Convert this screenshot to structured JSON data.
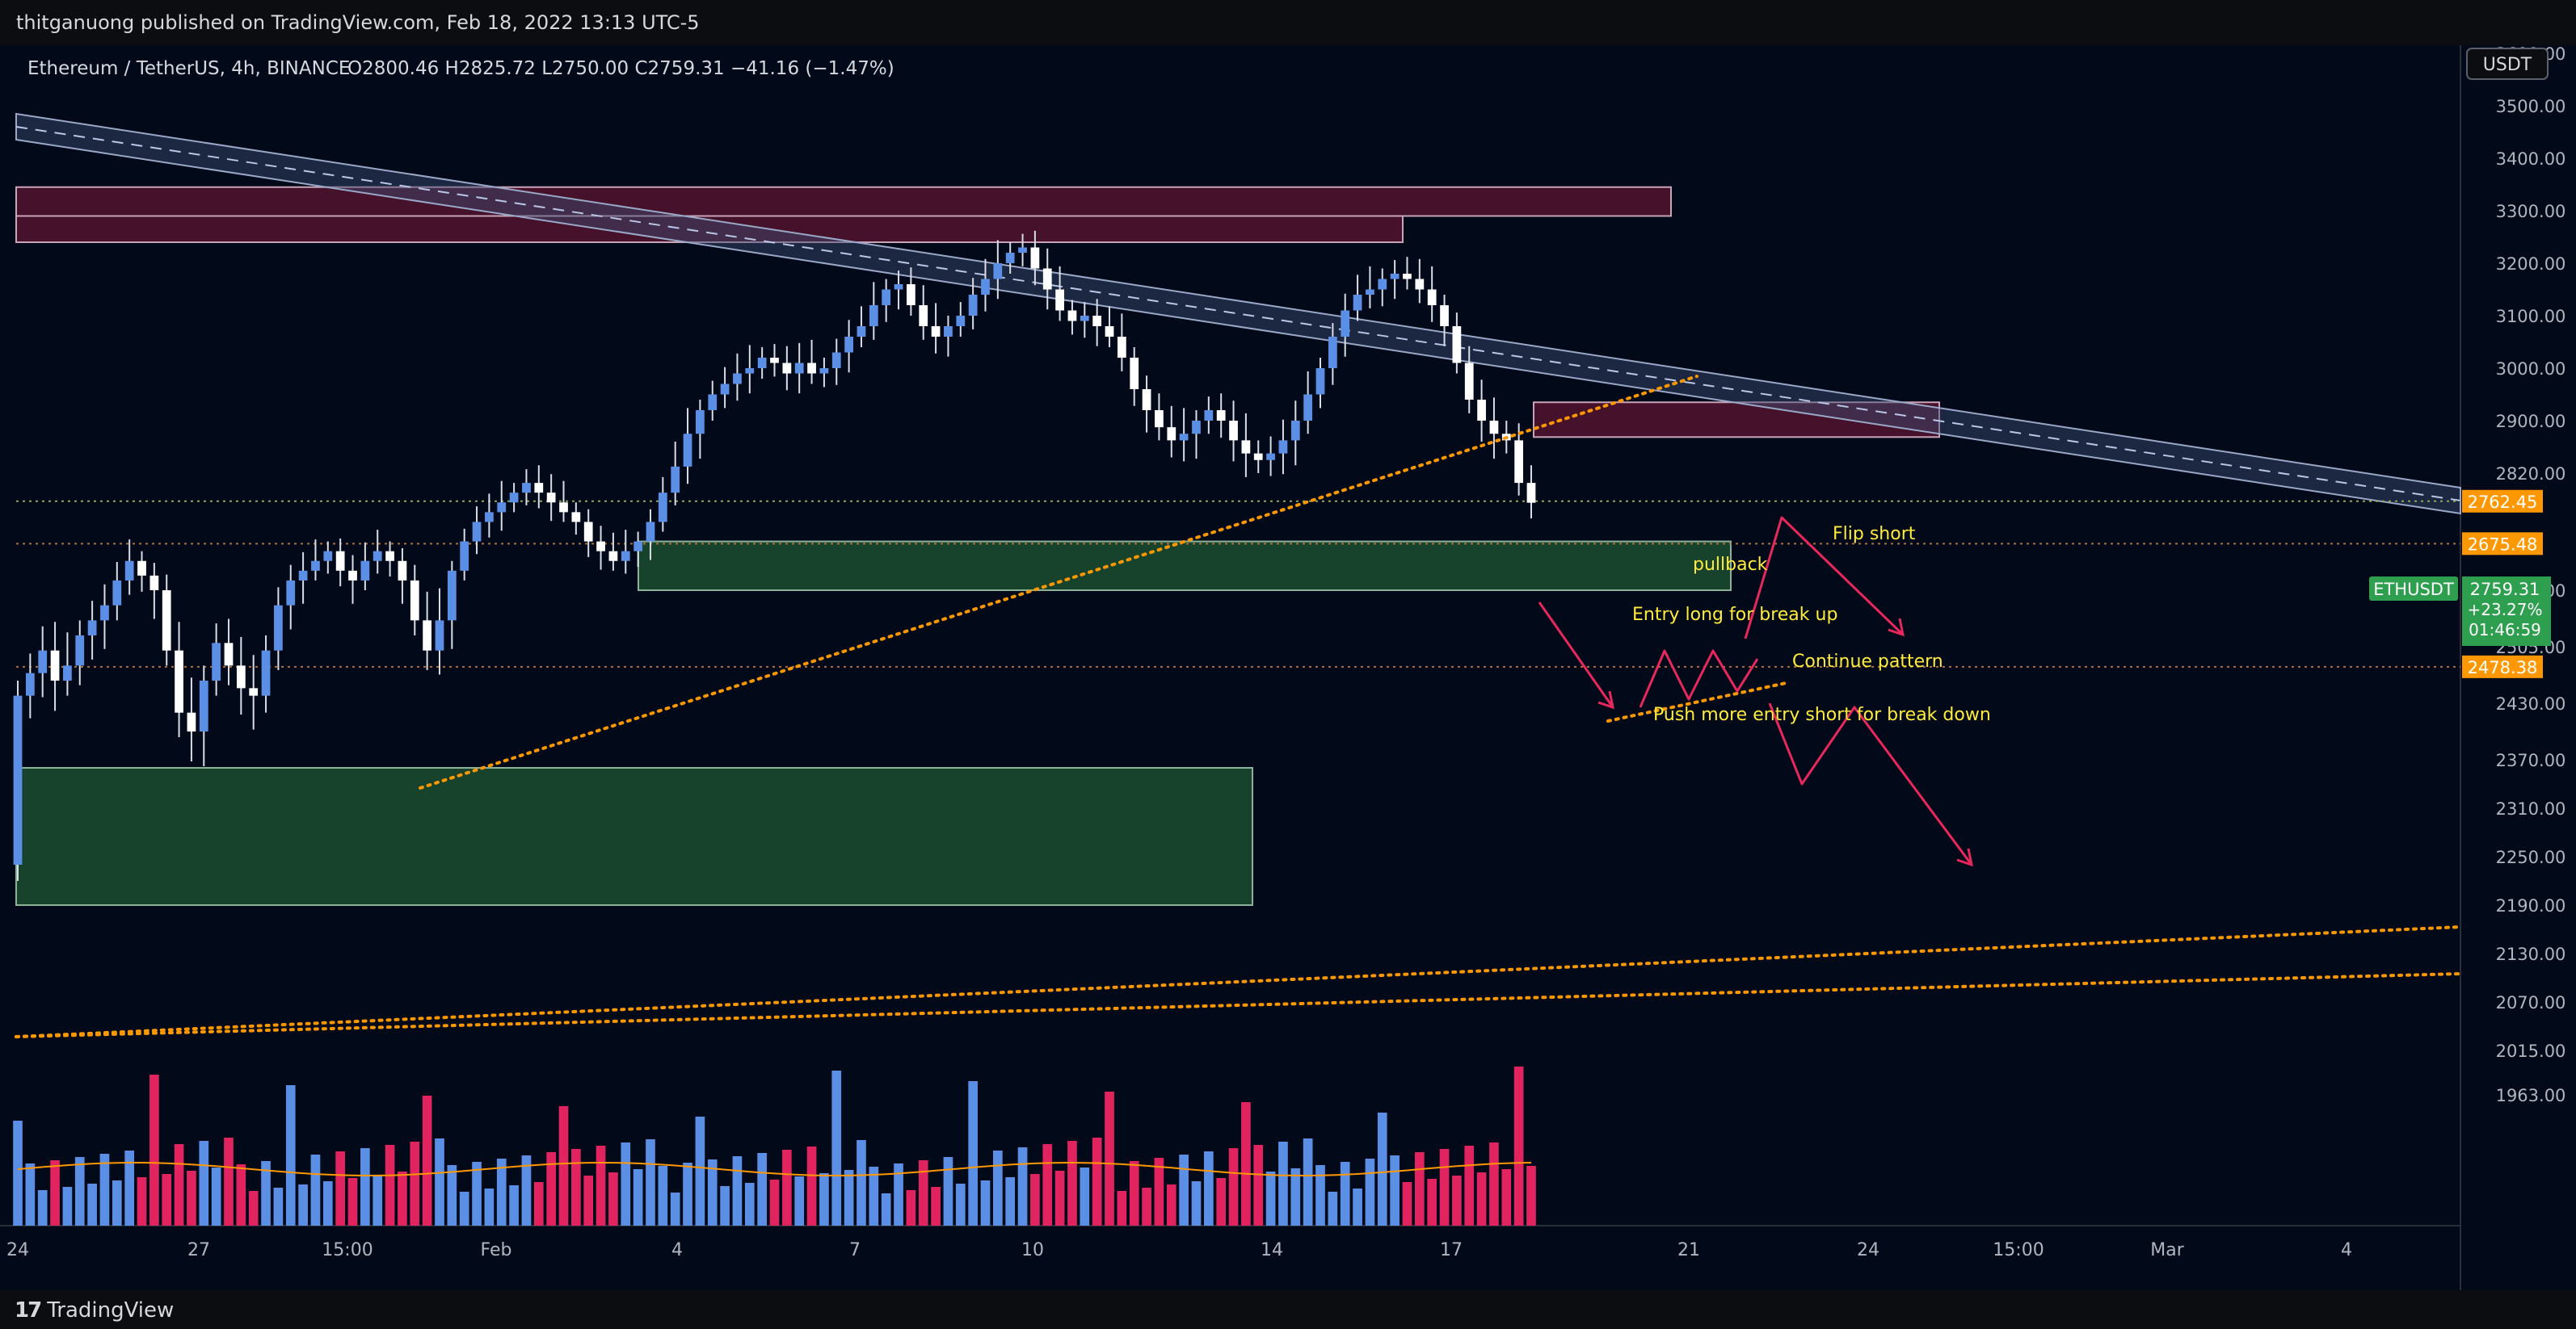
{
  "header": {
    "published": "thitganuong published on TradingView.com, Feb 18, 2022 13:13 UTC-5"
  },
  "footer": {
    "logo_mark": "17",
    "logo_text": "TradingView"
  },
  "legend": {
    "symbol": "Ethereum / TetherUS, 4h, BINANCE",
    "ohlc": "O2800.46  H2825.72  L2750.00  C2759.31  −41.16 (−1.47%)"
  },
  "currency_label": "USDT",
  "colors": {
    "background": "#020a1a",
    "up_candle": "#ffffff",
    "down_candle": "#ffffff",
    "volume_up": "#5b8fe6",
    "volume_down": "#e1245f",
    "supply_zone": "#52142f",
    "demand_zone": "#1b4d31",
    "trendline": "#ff9800",
    "channel": "#3c4e73",
    "arrow": "#e8285c",
    "annotation_text": "#ffeb3b",
    "price_tag_orange": "#ff9800",
    "price_tag_green": "#2e9e4f"
  },
  "chart_data": {
    "type": "candlestick",
    "symbol": "ETHUSDT",
    "timeframe": "4h",
    "exchange": "BINANCE",
    "x_ticks": [
      "24",
      "27",
      "15:00",
      "Feb",
      "4",
      "7",
      "10",
      "14",
      "17",
      "21",
      "24",
      "15:00",
      "Mar",
      "4"
    ],
    "y_ticks": [
      "3600.00",
      "3500.00",
      "3400.00",
      "3300.00",
      "3200.00",
      "3100.00",
      "3000.00",
      "2900.00",
      "2820.00",
      "2580.00",
      "2505.00",
      "2430.00",
      "2370.00",
      "2310.00",
      "2250.00",
      "2190.00",
      "2130.00",
      "2070.00",
      "2015.00",
      "1963.00"
    ],
    "ylim": [
      1963,
      3640
    ],
    "last_price": {
      "label": "ETHUSDT",
      "value": "2759.31",
      "change": "+23.27%",
      "countdown": "01:46:59"
    },
    "price_levels": [
      {
        "value": "2762.45"
      },
      {
        "value": "2675.48"
      },
      {
        "value": "2478.38"
      }
    ],
    "candles_close": [
      2440,
      2470,
      2500,
      2460,
      2480,
      2520,
      2540,
      2560,
      2600,
      2640,
      2610,
      2580,
      2500,
      2420,
      2400,
      2460,
      2510,
      2480,
      2450,
      2440,
      2500,
      2560,
      2600,
      2620,
      2640,
      2660,
      2620,
      2600,
      2640,
      2660,
      2640,
      2600,
      2540,
      2500,
      2540,
      2620,
      2680,
      2720,
      2740,
      2760,
      2780,
      2800,
      2780,
      2760,
      2740,
      2720,
      2680,
      2660,
      2640,
      2660,
      2680,
      2720,
      2780,
      2830,
      2880,
      2920,
      2950,
      2970,
      2990,
      3000,
      3020,
      3010,
      2990,
      3010,
      2990,
      3000,
      3030,
      3060,
      3080,
      3120,
      3150,
      3160,
      3120,
      3080,
      3060,
      3080,
      3100,
      3140,
      3170,
      3200,
      3220,
      3230,
      3190,
      3150,
      3110,
      3090,
      3100,
      3080,
      3060,
      3020,
      2960,
      2920,
      2890,
      2870,
      2880,
      2900,
      2920,
      2900,
      2870,
      2850,
      2840,
      2850,
      2870,
      2900,
      2950,
      3000,
      3060,
      3110,
      3140,
      3150,
      3170,
      3180,
      3170,
      3150,
      3120,
      3080,
      3010,
      2940,
      2900,
      2880,
      2870,
      2800,
      2759.31
    ],
    "volume_trend": "moving average line over volume bars",
    "supply_zones": [
      {
        "top": 3345,
        "bottom": 3290
      },
      {
        "top": 3290,
        "bottom": 3240
      },
      {
        "top": 2935,
        "bottom": 2875
      }
    ],
    "demand_zones": [
      {
        "top": 2680,
        "bottom": 2580
      },
      {
        "top": 2360,
        "bottom": 2190
      }
    ],
    "annotations": [
      {
        "text": "Flip short"
      },
      {
        "text": "pullback"
      },
      {
        "text": "Entry long for break up"
      },
      {
        "text": "Continue pattern"
      },
      {
        "text": "Push more entry short for break down"
      }
    ]
  }
}
